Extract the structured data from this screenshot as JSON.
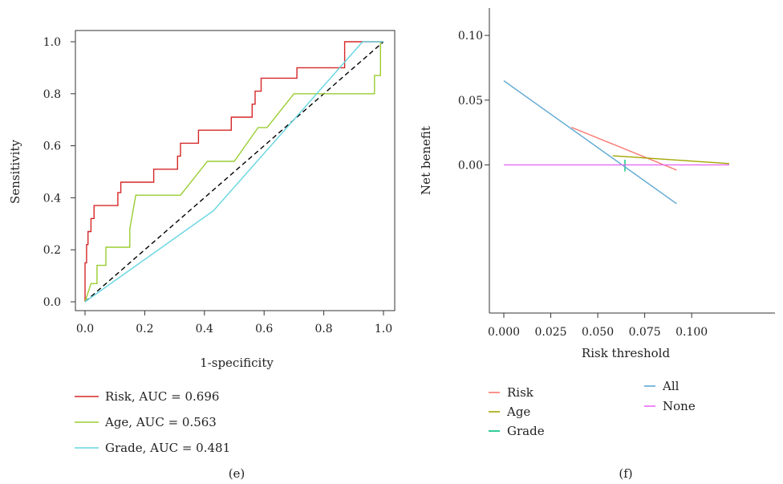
{
  "chart_data": [
    {
      "id": "e",
      "type": "line",
      "panel_label": "(e)",
      "xlabel": "1-specificity",
      "ylabel": "Sensitivity",
      "xlim": [
        0,
        1
      ],
      "ylim": [
        0,
        1
      ],
      "xticks": [
        0.0,
        0.2,
        0.4,
        0.6,
        0.8,
        1.0
      ],
      "xtick_labels": [
        "0.0",
        "0.2",
        "0.4",
        "0.6",
        "0.8",
        "1.0"
      ],
      "yticks": [
        0.0,
        0.2,
        0.4,
        0.6,
        0.8,
        1.0
      ],
      "ytick_labels": [
        "0.0",
        "0.2",
        "0.4",
        "0.6",
        "0.8",
        "1.0"
      ],
      "legend_position": "below",
      "reference_line": {
        "points": [
          [
            0,
            0
          ],
          [
            1,
            1
          ]
        ],
        "style": "dashed",
        "color": "#000000"
      },
      "series": [
        {
          "name": "Risk, AUC = 0.696",
          "color": "#d62728",
          "points": [
            [
              0,
              0
            ],
            [
              0,
              0.15
            ],
            [
              0.005,
              0.15
            ],
            [
              0.005,
              0.22
            ],
            [
              0.01,
              0.22
            ],
            [
              0.01,
              0.27
            ],
            [
              0.02,
              0.27
            ],
            [
              0.02,
              0.32
            ],
            [
              0.03,
              0.32
            ],
            [
              0.03,
              0.37
            ],
            [
              0.11,
              0.37
            ],
            [
              0.11,
              0.42
            ],
            [
              0.12,
              0.42
            ],
            [
              0.12,
              0.46
            ],
            [
              0.23,
              0.46
            ],
            [
              0.23,
              0.51
            ],
            [
              0.31,
              0.51
            ],
            [
              0.31,
              0.56
            ],
            [
              0.32,
              0.56
            ],
            [
              0.32,
              0.61
            ],
            [
              0.38,
              0.61
            ],
            [
              0.38,
              0.66
            ],
            [
              0.49,
              0.66
            ],
            [
              0.49,
              0.71
            ],
            [
              0.56,
              0.71
            ],
            [
              0.56,
              0.76
            ],
            [
              0.57,
              0.76
            ],
            [
              0.57,
              0.81
            ],
            [
              0.59,
              0.81
            ],
            [
              0.59,
              0.86
            ],
            [
              0.71,
              0.86
            ],
            [
              0.71,
              0.9
            ],
            [
              0.87,
              0.9
            ],
            [
              0.87,
              1.0
            ],
            [
              1.0,
              1.0
            ]
          ]
        },
        {
          "name": "Age, AUC = 0.563",
          "color": "#9acd32",
          "points": [
            [
              0,
              0
            ],
            [
              0.02,
              0.07
            ],
            [
              0.04,
              0.07
            ],
            [
              0.04,
              0.14
            ],
            [
              0.07,
              0.14
            ],
            [
              0.07,
              0.21
            ],
            [
              0.15,
              0.21
            ],
            [
              0.15,
              0.28
            ],
            [
              0.17,
              0.41
            ],
            [
              0.32,
              0.41
            ],
            [
              0.41,
              0.54
            ],
            [
              0.5,
              0.54
            ],
            [
              0.58,
              0.67
            ],
            [
              0.61,
              0.67
            ],
            [
              0.7,
              0.8
            ],
            [
              0.97,
              0.8
            ],
            [
              0.97,
              0.87
            ],
            [
              0.99,
              0.87
            ],
            [
              0.99,
              1.0
            ]
          ]
        },
        {
          "name": "Grade, AUC = 0.481",
          "color": "#66d6e0",
          "points": [
            [
              0,
              0
            ],
            [
              0.43,
              0.35
            ],
            [
              0.93,
              1.0
            ],
            [
              1.0,
              1.0
            ]
          ]
        }
      ]
    },
    {
      "id": "f",
      "type": "line",
      "panel_label": "(f)",
      "xlabel": "Risk threshold",
      "ylabel": "Net benefit",
      "xlim": [
        0.0,
        0.12
      ],
      "ylim": [
        -0.045,
        0.11
      ],
      "xticks": [
        0.0,
        0.025,
        0.05,
        0.075,
        0.1
      ],
      "xtick_labels": [
        "0.000",
        "0.025",
        "0.050",
        "0.075",
        "0.100"
      ],
      "yticks": [
        0.0,
        0.05,
        0.1
      ],
      "ytick_labels": [
        "0.00",
        "0.05",
        "0.10"
      ],
      "legend_position": "below",
      "series": [
        {
          "name": "Risk",
          "color": "#f8766d",
          "points": [
            [
              0.036,
              0.029
            ],
            [
              0.092,
              -0.004
            ]
          ]
        },
        {
          "name": "Age",
          "color": "#a3a500",
          "points": [
            [
              0.058,
              0.007
            ],
            [
              0.12,
              0.001
            ]
          ]
        },
        {
          "name": "Grade",
          "color": "#00bf7d",
          "points": [
            [
              0.0645,
              0.004
            ],
            [
              0.0645,
              -0.005
            ]
          ]
        },
        {
          "name": "All",
          "color": "#5fa8d3",
          "points": [
            [
              0.0,
              0.065
            ],
            [
              0.092,
              -0.03
            ]
          ]
        },
        {
          "name": "None",
          "color": "#e76bf3",
          "points": [
            [
              0.0,
              0.0
            ],
            [
              0.12,
              0.0
            ]
          ]
        }
      ]
    }
  ]
}
